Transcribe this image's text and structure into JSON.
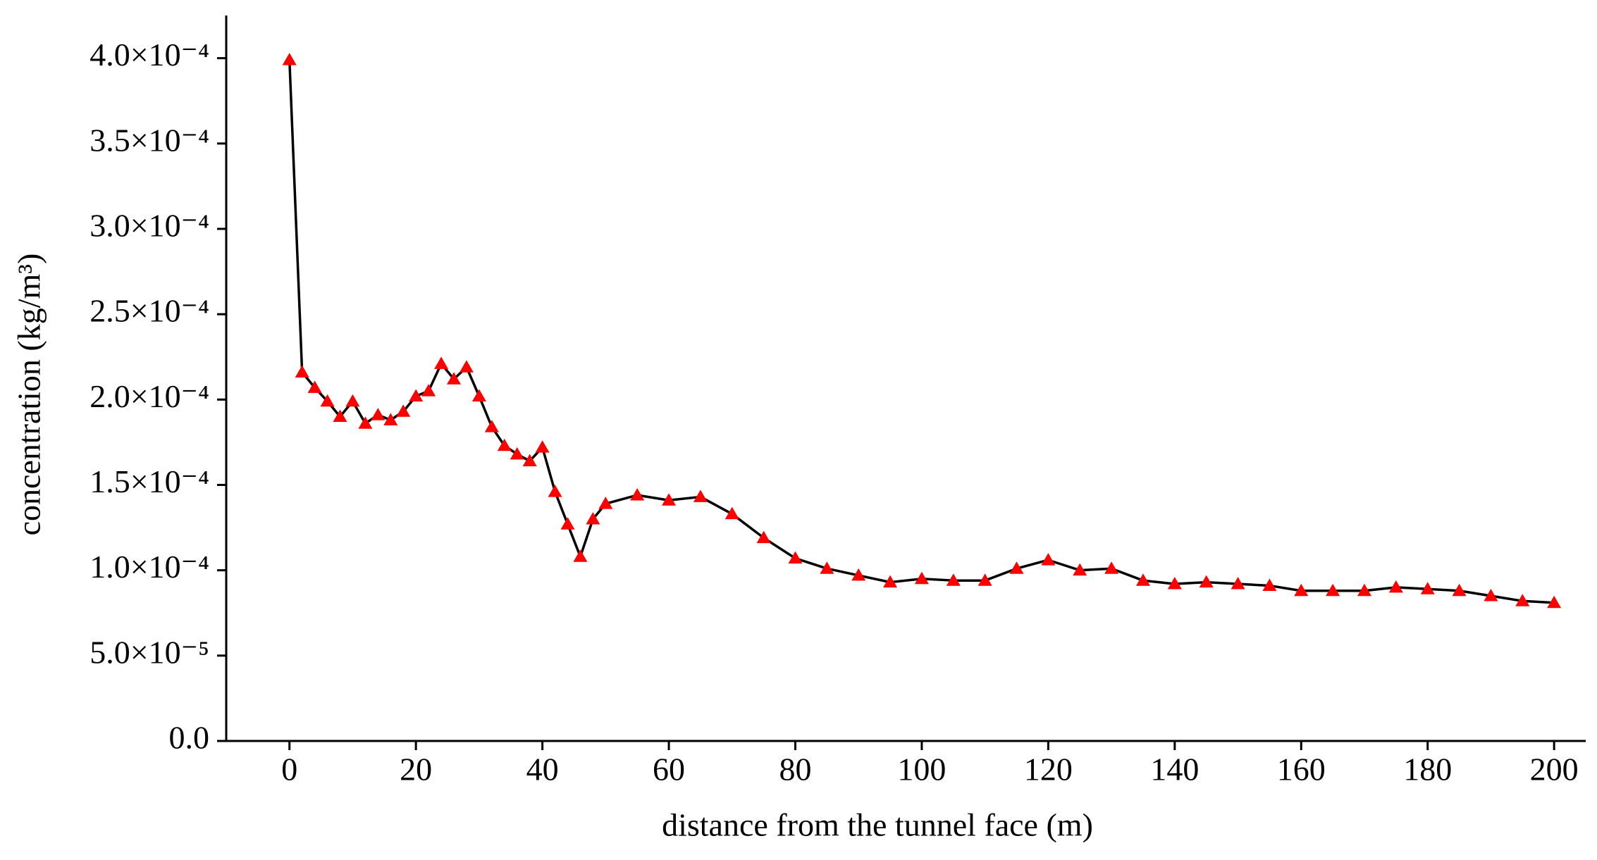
{
  "chart_data": {
    "type": "line",
    "xlabel": "distance from the tunnel face (m)",
    "ylabel": "concentration (kg/m³)",
    "x": [
      0,
      2,
      4,
      6,
      8,
      10,
      12,
      14,
      16,
      18,
      20,
      22,
      24,
      26,
      28,
      30,
      32,
      34,
      36,
      38,
      40,
      42,
      44,
      46,
      48,
      50,
      55,
      60,
      65,
      70,
      75,
      80,
      85,
      90,
      95,
      100,
      105,
      110,
      115,
      120,
      125,
      130,
      135,
      140,
      145,
      150,
      155,
      160,
      165,
      170,
      175,
      180,
      185,
      190,
      195,
      200
    ],
    "series": [
      {
        "line_color": "#000000",
        "marker_color": "#ff0000",
        "values": [
          0.000399,
          0.000216,
          0.000207,
          0.000199,
          0.00019,
          0.000199,
          0.000186,
          0.000191,
          0.000188,
          0.000193,
          0.000202,
          0.000205,
          0.000221,
          0.000212,
          0.000219,
          0.000202,
          0.000184,
          0.000173,
          0.000168,
          0.000164,
          0.000172,
          0.000146,
          0.000127,
          0.000108,
          0.00013,
          0.000139,
          0.000144,
          0.000141,
          0.000143,
          0.000133,
          0.000119,
          0.000107,
          0.000101,
          9.7e-05,
          9.3e-05,
          9.5e-05,
          9.4e-05,
          9.4e-05,
          0.000101,
          0.000106,
          0.0001,
          0.000101,
          9.4e-05,
          9.2e-05,
          9.3e-05,
          9.2e-05,
          9.1e-05,
          8.8e-05,
          8.8e-05,
          8.8e-05,
          9e-05,
          8.9e-05,
          8.8e-05,
          8.5e-05,
          8.2e-05,
          8.1e-05
        ]
      }
    ],
    "xlim": [
      -10,
      205
    ],
    "xticks": [
      0,
      20,
      40,
      60,
      80,
      100,
      120,
      140,
      160,
      180,
      200
    ],
    "ylim": [
      0,
      0.000425
    ],
    "yticks": [
      {
        "value": 0,
        "label": "0.0"
      },
      {
        "value": 5e-05,
        "label": "5.0×10⁻⁵"
      },
      {
        "value": 0.0001,
        "label": "1.0×10⁻⁴"
      },
      {
        "value": 0.00015,
        "label": "1.5×10⁻⁴"
      },
      {
        "value": 0.0002,
        "label": "2.0×10⁻⁴"
      },
      {
        "value": 0.00025,
        "label": "2.5×10⁻⁴"
      },
      {
        "value": 0.0003,
        "label": "3.0×10⁻⁴"
      },
      {
        "value": 0.00035,
        "label": "3.5×10⁻⁴"
      },
      {
        "value": 0.0004,
        "label": "4.0×10⁻⁴"
      }
    ]
  }
}
